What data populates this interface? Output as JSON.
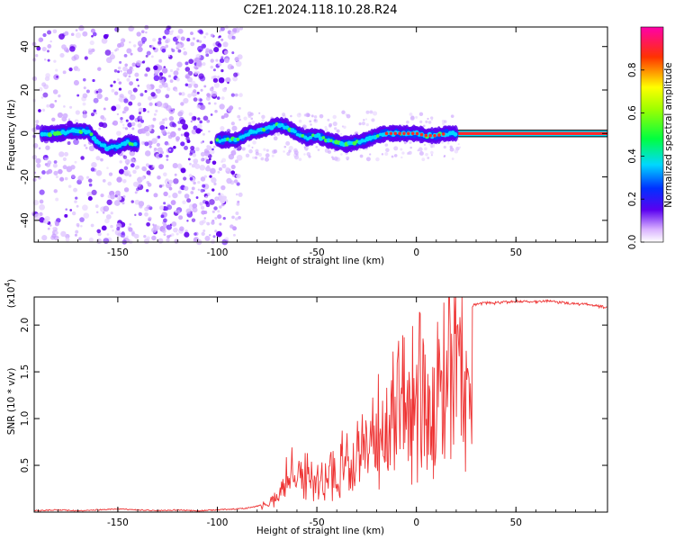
{
  "title": "C2E1.2024.118.10.28.R24",
  "chart_data": [
    {
      "type": "heatmap",
      "xlabel": "Height of straight line (km)",
      "ylabel": "Frequency (Hz)",
      "xlim": [
        -192,
        96
      ],
      "ylim": [
        -50,
        49
      ],
      "xticks": [
        -150,
        -100,
        -50,
        0,
        50
      ],
      "yticks": [
        -40,
        -20,
        0,
        20,
        40
      ],
      "grid": false,
      "ridge": {
        "x": [
          -187,
          -180,
          -172,
          -165,
          -160,
          -155,
          -150,
          -145,
          -140,
          -100,
          -95,
          -90,
          -85,
          -80,
          -75,
          -70,
          -65,
          -60,
          -55,
          -50,
          -45,
          -40,
          -35,
          -30,
          -25,
          -20,
          -15,
          -10,
          -5,
          0,
          5,
          10,
          15,
          20,
          96
        ],
        "y": [
          0,
          0,
          1,
          1,
          -4,
          -7,
          -6,
          -4,
          -5,
          -3,
          -3,
          -3,
          0,
          1,
          2,
          4,
          3,
          0,
          -2,
          -1,
          -3,
          -4,
          -5,
          -4,
          -3,
          -1,
          0,
          0,
          0,
          0,
          -1,
          -1,
          0,
          0,
          0
        ]
      },
      "colorbar": {
        "label": "Normalized spectral amplitude",
        "range": [
          0.0,
          1.0
        ],
        "ticks": [
          0.0,
          0.2,
          0.4,
          0.6,
          0.8
        ]
      }
    },
    {
      "type": "line",
      "xlabel": "Height of straight line (km)",
      "ylabel": "SNR (10 * v/v)",
      "y_multiplier": "(x10",
      "y_multiplier_exp": "4",
      "y_multiplier_close": ")",
      "xlim": [
        -192,
        96
      ],
      "ylim": [
        0,
        2.3
      ],
      "xticks": [
        -150,
        -100,
        -50,
        0,
        50
      ],
      "yticks": [
        0.5,
        1.0,
        1.5,
        2.0
      ],
      "ytick_labels": [
        "0.5",
        "1.0",
        "1.5",
        "2.0"
      ],
      "grid": false,
      "color": "#ee3333",
      "series": [
        {
          "x": [
            -192,
            -180,
            -170,
            -160,
            -150,
            -140,
            -130,
            -120,
            -110,
            -100,
            -90,
            -85,
            -80,
            -75,
            -72,
            -70,
            -68,
            -66,
            -64,
            -62,
            -60,
            -58,
            -56,
            -54,
            -52,
            -50,
            -48,
            -46,
            -44,
            -42,
            -40,
            -38,
            -36,
            -34,
            -32,
            -30,
            -28,
            -26,
            -24,
            -22,
            -20,
            -18,
            -16,
            -14,
            -12,
            -10,
            -8,
            -6,
            -4,
            -2,
            0,
            2,
            4,
            6,
            8,
            10,
            12,
            14,
            16,
            18,
            20,
            22,
            24,
            26,
            28,
            30,
            35,
            40,
            45,
            50,
            55,
            60,
            65,
            70,
            75,
            80,
            85,
            90,
            96
          ],
          "y": [
            0.02,
            0.03,
            0.02,
            0.03,
            0.04,
            0.03,
            0.02,
            0.03,
            0.02,
            0.03,
            0.04,
            0.05,
            0.07,
            0.1,
            0.15,
            0.2,
            0.3,
            0.45,
            0.55,
            0.6,
            0.55,
            0.6,
            0.45,
            0.5,
            0.4,
            0.42,
            0.38,
            0.45,
            0.5,
            0.55,
            0.5,
            0.6,
            0.65,
            0.7,
            0.85,
            0.9,
            0.85,
            0.95,
            1.1,
            1.15,
            1.2,
            1.3,
            1.35,
            1.4,
            1.45,
            1.5,
            1.5,
            1.55,
            1.55,
            1.6,
            1.65,
            1.6,
            1.55,
            1.45,
            1.5,
            1.55,
            1.65,
            1.85,
            1.95,
            2.05,
            2.1,
            2.15,
            2.18,
            2.2,
            2.22,
            2.24,
            2.25,
            2.25,
            2.26,
            2.27,
            2.27,
            2.26,
            2.27,
            2.26,
            2.25,
            2.24,
            2.24,
            2.22,
            2.2
          ]
        }
      ]
    }
  ]
}
